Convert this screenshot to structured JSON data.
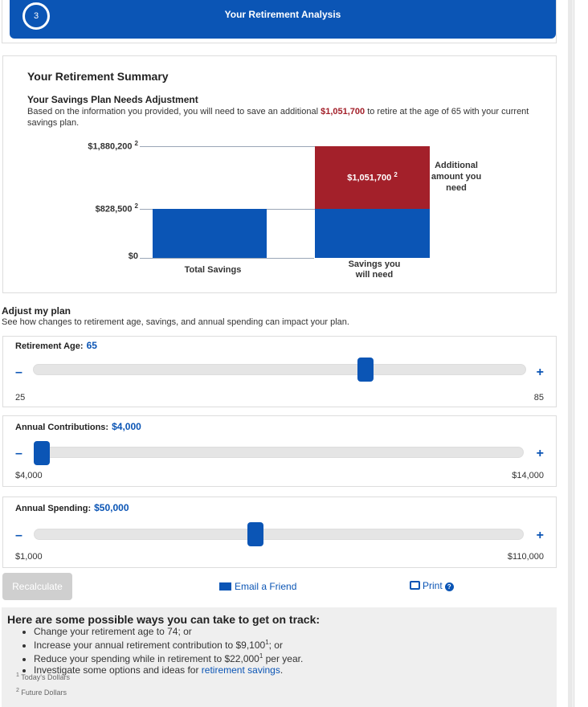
{
  "header": {
    "step_number": "3",
    "title": "Your Retirement Analysis"
  },
  "summary": {
    "heading": "Your Retirement Summary",
    "status_title": "Your Savings Plan Needs Adjustment",
    "status_text_before": "Based on the information you provided, you will need to save an additional ",
    "additional_amount": "$1,051,700",
    "status_text_after": " to retire at the age of 65 with your current savings plan.",
    "chart_note": "Additional amount you need"
  },
  "chart_data": {
    "type": "bar",
    "categories": [
      "Total Savings",
      "Savings you will need"
    ],
    "series": [
      {
        "values": [
          828500,
          828500
        ],
        "color": "#0b55b5"
      },
      {
        "values": [
          0,
          1051700
        ],
        "color": "#a3202a"
      }
    ],
    "total": 1880200,
    "ylim": [
      0,
      1880200
    ],
    "tick_labels": [
      "$1,880,200",
      "$828,500",
      "$0"
    ],
    "tick_footnote": "2",
    "data_labels": [
      "$1,051,700"
    ],
    "x_labels": [
      "Total Savings",
      "Savings you will need"
    ],
    "stacked": true
  },
  "adjust": {
    "heading": "Adjust my plan",
    "subtext": "See how changes to retirement age, savings, and annual spending can impact your plan."
  },
  "sliders": {
    "age": {
      "label": "Retirement Age:",
      "value": "65",
      "min": "25",
      "max": "85",
      "fraction": 0.68
    },
    "contrib": {
      "label": "Annual Contributions:",
      "value": "$4,000",
      "min": "$4,000",
      "max": "$14,000",
      "fraction": 0.0
    },
    "spending": {
      "label": "Annual Spending:",
      "value": "$50,000",
      "min": "$1,000",
      "max": "$110,000",
      "fraction": 0.45
    }
  },
  "controls": {
    "minus": "–",
    "plus": "+"
  },
  "actions": {
    "recalculate": "Recalculate",
    "email": "Email a Friend",
    "print": "Print",
    "help": "?"
  },
  "tips": {
    "heading": "Here are some possible ways you can take to get on track:",
    "item1": "Change your retirement age to 74; or",
    "item2_before": "Increase your annual retirement contribution to $9,100",
    "item2_after": "; or",
    "item3_before": "Reduce your spending while in retirement to $22,000",
    "item3_after": " per year.",
    "item4_before": "Investigate some options and ideas for ",
    "item4_link": "retirement savings",
    "item4_after": ".",
    "sup1": "1",
    "sup2": "2",
    "footnote1": "Today's Dollars",
    "footnote2": "Future Dollars"
  },
  "colors": {
    "brand_blue": "#0b55b5",
    "alert_red": "#a3202a"
  }
}
